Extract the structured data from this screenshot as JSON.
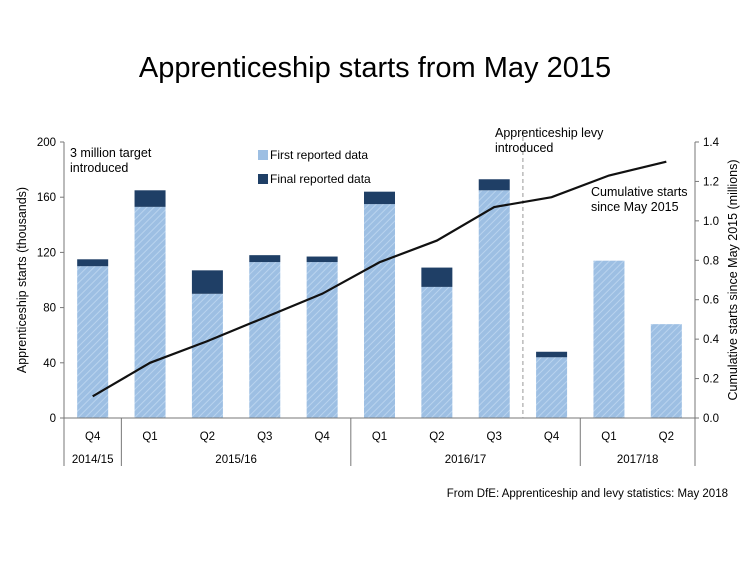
{
  "title": "Apprenticeship starts from May 2015",
  "source": "From DfE:  Apprenticeship and levy statistics: May 2018",
  "colors": {
    "first": "#9dbfe3",
    "final": "#1f3f66",
    "line": "#111111",
    "grid": "#d9d9d9"
  },
  "chart_data": {
    "type": "bar",
    "categories": [
      "Q4",
      "Q1",
      "Q2",
      "Q3",
      "Q4",
      "Q1",
      "Q2",
      "Q3",
      "Q4",
      "Q1",
      "Q2"
    ],
    "year_groups": [
      {
        "label": "2014/15",
        "count": 1
      },
      {
        "label": "2015/16",
        "count": 4
      },
      {
        "label": "2016/17",
        "count": 4
      },
      {
        "label": "2017/18",
        "count": 2
      }
    ],
    "series": [
      {
        "name": "First reported data",
        "values": [
          110,
          153,
          90,
          113,
          113,
          155,
          95,
          165,
          44,
          114,
          68
        ]
      },
      {
        "name": "Final reported data",
        "values": [
          5,
          12,
          17,
          5,
          4,
          9,
          14,
          8,
          4,
          0,
          0
        ]
      },
      {
        "name": "Cumulative starts since May 2015",
        "axis": "right",
        "type": "line",
        "values": [
          0.11,
          0.28,
          0.39,
          0.51,
          0.63,
          0.79,
          0.9,
          1.07,
          1.12,
          1.23,
          1.3
        ]
      }
    ],
    "ylabel": "Apprenticeship starts (thousands)",
    "ylim": [
      0,
      200
    ],
    "yticks": [
      0,
      40,
      80,
      120,
      160,
      200
    ],
    "y2label": "Cumulative starts since May 2015  (millions)",
    "y2lim": [
      0,
      1.4
    ],
    "y2ticks": [
      "0.0",
      "0.2",
      "0.4",
      "0.6",
      "0.8",
      "1.0",
      "1.2",
      "1.4"
    ],
    "grid": false,
    "legend": "top-center",
    "annotations": {
      "target_line1": "3 million target",
      "target_line2": "introduced",
      "levy_line1": "Apprenticeship levy",
      "levy_line2": "introduced",
      "cumulative_line1": "Cumulative starts",
      "cumulative_line2": "since May 2015"
    }
  }
}
